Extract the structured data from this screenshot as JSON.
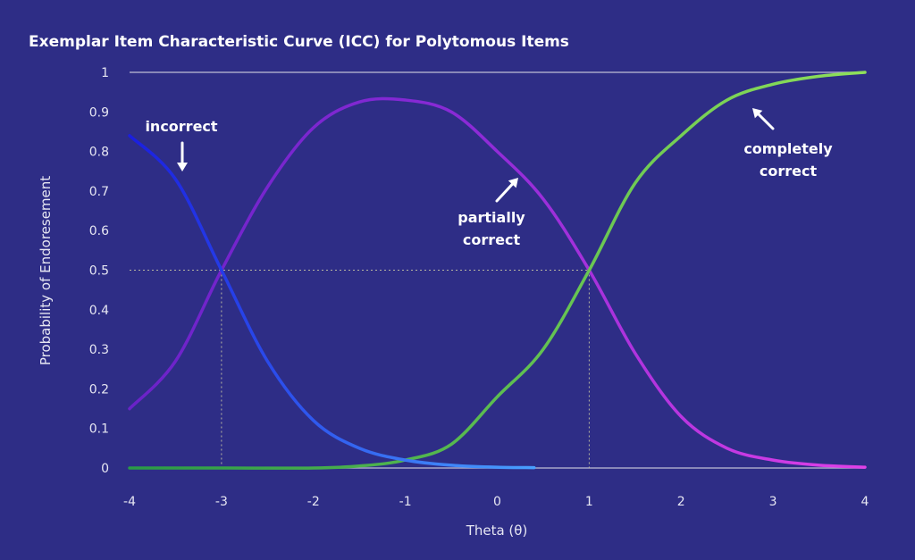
{
  "chart_data": {
    "type": "line",
    "title": "Exemplar Item Characteristic Curve (ICC) for Polytomous Items",
    "xlabel": "Theta (θ)",
    "ylabel": "Probability of Endoresement",
    "xlim": [
      -4,
      4
    ],
    "ylim": [
      0,
      1
    ],
    "x_ticks": [
      "-4",
      "-3",
      "-2",
      "-1",
      "0",
      "1",
      "2",
      "3",
      "4"
    ],
    "y_ticks": [
      "0",
      "0.1",
      "0.2",
      "0.3",
      "0.4",
      "0.5",
      "0.6",
      "0.7",
      "0.8",
      "0.9",
      "1"
    ],
    "grid": false,
    "reference_lines": [
      {
        "x": -3,
        "y": 0.5
      },
      {
        "x": 1,
        "y": 0.5
      }
    ],
    "series": [
      {
        "name": "incorrect",
        "color": "#1a1ee0",
        "color_end": "#4aa3ff",
        "x": [
          -4,
          -3.5,
          -3,
          -2.5,
          -2,
          -1.5,
          -1,
          -0.5,
          0,
          0.4
        ],
        "y": [
          0.84,
          0.73,
          0.5,
          0.27,
          0.12,
          0.05,
          0.02,
          0.007,
          0.002,
          0.001
        ]
      },
      {
        "name": "partially correct",
        "color": "#8a2ad6",
        "color_end": "#e040e8",
        "x": [
          -4,
          -3.5,
          -3,
          -2.5,
          -2,
          -1.5,
          -1,
          -0.5,
          0,
          0.5,
          1,
          1.5,
          2,
          2.5,
          3,
          3.5,
          4
        ],
        "y": [
          0.15,
          0.27,
          0.5,
          0.71,
          0.86,
          0.925,
          0.93,
          0.9,
          0.8,
          0.68,
          0.5,
          0.29,
          0.13,
          0.05,
          0.02,
          0.007,
          0.002
        ]
      },
      {
        "name": "completely correct",
        "color": "#38b54a",
        "color_end": "#7ed957",
        "x": [
          -4,
          -3,
          -2,
          -1.5,
          -1,
          -0.5,
          0,
          0.5,
          1,
          1.5,
          2,
          2.5,
          3,
          3.5,
          4
        ],
        "y": [
          0,
          0,
          0,
          0.005,
          0.02,
          0.06,
          0.18,
          0.3,
          0.5,
          0.72,
          0.84,
          0.93,
          0.97,
          0.99,
          1.0
        ]
      }
    ],
    "annotations": [
      {
        "lines": [
          "incorrect"
        ],
        "arrow": "down",
        "series": "incorrect"
      },
      {
        "lines": [
          "partially",
          "correct"
        ],
        "arrow": "up-right",
        "series": "partially correct"
      },
      {
        "lines": [
          "completely",
          "correct"
        ],
        "arrow": "up-left",
        "series": "completely correct"
      }
    ]
  }
}
